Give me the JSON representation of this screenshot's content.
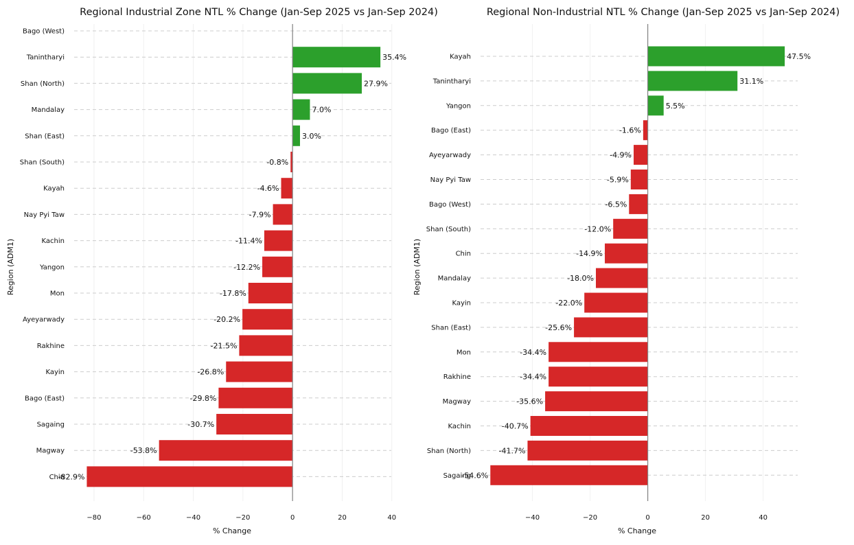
{
  "colors": {
    "positive": "#2ca02c",
    "negative": "#d62728",
    "zero_line": "#808080",
    "grid": "#cccccc"
  },
  "chart_data": [
    {
      "type": "bar",
      "orientation": "horizontal",
      "title": "Regional Industrial Zone NTL % Change (Jan-Sep 2025 vs Jan-Sep 2024)",
      "xlabel": "% Change",
      "ylabel": "Region (ADM1)",
      "xlim": [
        -88,
        42
      ],
      "xticks": [
        -80,
        -60,
        -40,
        -20,
        0,
        20,
        40
      ],
      "xtick_labels": [
        "−80",
        "−60",
        "−40",
        "−20",
        "0",
        "20",
        "40"
      ],
      "grid": "horizontal dashed",
      "categories": [
        "Bago (West)",
        "Tanintharyi",
        "Shan (North)",
        "Mandalay",
        "Shan (East)",
        "Shan (South)",
        "Kayah",
        "Nay Pyi Taw",
        "Kachin",
        "Yangon",
        "Mon",
        "Ayeyarwady",
        "Rakhine",
        "Kayin",
        "Bago (East)",
        "Sagaing",
        "Magway",
        "Chin"
      ],
      "values": [
        null,
        35.4,
        27.9,
        7.0,
        3.0,
        -0.8,
        -4.6,
        -7.9,
        -11.4,
        -12.2,
        -17.8,
        -20.2,
        -21.5,
        -26.8,
        -29.8,
        -30.7,
        -53.8,
        -82.9
      ],
      "labels": [
        "",
        "35.4%",
        "27.9%",
        "7.0%",
        "3.0%",
        "-0.8%",
        "-4.6%",
        "-7.9%",
        "-11.4%",
        "-12.2%",
        "-17.8%",
        "-20.2%",
        "-21.5%",
        "-26.8%",
        "-29.8%",
        "-30.7%",
        "-53.8%",
        "-82.9%"
      ]
    },
    {
      "type": "bar",
      "orientation": "horizontal",
      "title": "Regional Non-Industrial NTL % Change (Jan-Sep 2025 vs Jan-Sep 2024)",
      "xlabel": "% Change",
      "ylabel": "Region (ADM1)",
      "xlim": [
        -58,
        52
      ],
      "xticks": [
        -40,
        -20,
        0,
        20,
        40
      ],
      "xtick_labels": [
        "−40",
        "−20",
        "0",
        "20",
        "40"
      ],
      "grid": "horizontal dashed",
      "categories": [
        "Kayah",
        "Tanintharyi",
        "Yangon",
        "Bago (East)",
        "Ayeyarwady",
        "Nay Pyi Taw",
        "Bago (West)",
        "Shan (South)",
        "Chin",
        "Mandalay",
        "Kayin",
        "Shan (East)",
        "Mon",
        "Rakhine",
        "Magway",
        "Kachin",
        "Shan (North)",
        "Sagaing"
      ],
      "values": [
        47.5,
        31.1,
        5.5,
        -1.6,
        -4.9,
        -5.9,
        -6.5,
        -12.0,
        -14.9,
        -18.0,
        -22.0,
        -25.6,
        -34.4,
        -34.4,
        -35.6,
        -40.7,
        -41.7,
        -54.6
      ],
      "labels": [
        "47.5%",
        "31.1%",
        "5.5%",
        "-1.6%",
        "-4.9%",
        "-5.9%",
        "-6.5%",
        "-12.0%",
        "-14.9%",
        "-18.0%",
        "-22.0%",
        "-25.6%",
        "-34.4%",
        "-34.4%",
        "-35.6%",
        "-40.7%",
        "-41.7%",
        "-54.6%"
      ]
    }
  ]
}
